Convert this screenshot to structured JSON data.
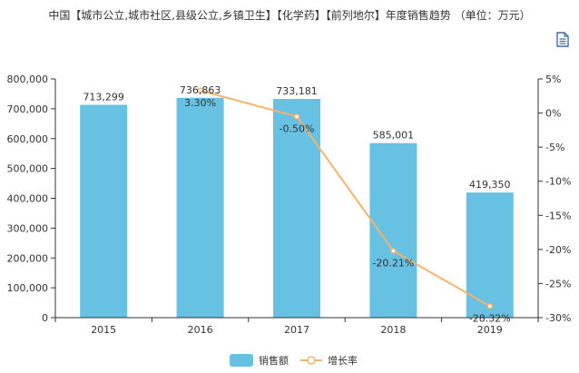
{
  "title": "中国【城市公立,城市社区,县级公立,乡镇卫生】【化学药】【前列地尔】年度销售趋势 （单位：万元）",
  "icons": {
    "toolbox": "document-icon"
  },
  "colors": {
    "bar": "#67c1e3",
    "line": "#f7b26b",
    "axis": "#333333",
    "grid": "#e6e6e6",
    "point_fill": "#ffffff"
  },
  "chart_data": {
    "type": "bar+line",
    "categories": [
      "2015",
      "2016",
      "2017",
      "2018",
      "2019"
    ],
    "series": [
      {
        "name": "销售额",
        "type": "bar",
        "axis": "left",
        "values": [
          713299,
          736863,
          733181,
          585001,
          419350
        ],
        "labels": [
          "713,299",
          "736,863",
          "733,181",
          "585,001",
          "419,350"
        ]
      },
      {
        "name": "增长率",
        "type": "line",
        "axis": "right",
        "values": [
          null,
          3.3,
          -0.5,
          -20.21,
          -28.32
        ],
        "labels": [
          "",
          "3.30%",
          "-0.50%",
          "-20.21%",
          "-28.32%"
        ]
      }
    ],
    "y_left": {
      "min": 0,
      "max": 800000,
      "step": 100000,
      "tick_labels": [
        "0",
        "100,000",
        "200,000",
        "300,000",
        "400,000",
        "500,000",
        "600,000",
        "700,000",
        "800,000"
      ]
    },
    "y_right": {
      "min": -30,
      "max": 5,
      "step": 5,
      "tick_labels": [
        "-30%",
        "-25%",
        "-20%",
        "-15%",
        "-10%",
        "-5%",
        "0%",
        "5%"
      ]
    },
    "grid": false,
    "legend_position": "bottom-center"
  }
}
